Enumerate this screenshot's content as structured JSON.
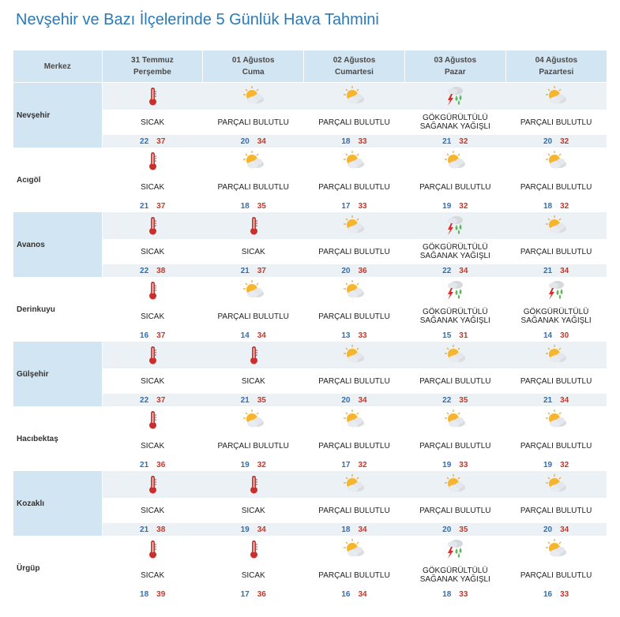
{
  "page_title": "Nevşehir ve Bazı İlçelerinde 5 Günlük Hava Tahmini",
  "header": {
    "merkez": "Merkez",
    "days": [
      {
        "date": "31 Temmuz",
        "weekday": "Perşembe"
      },
      {
        "date": "01 Ağustos",
        "weekday": "Cuma"
      },
      {
        "date": "02 Ağustos",
        "weekday": "Cumartesi"
      },
      {
        "date": "03 Ağustos",
        "weekday": "Pazar"
      },
      {
        "date": "04 Ağustos",
        "weekday": "Pazartesi"
      }
    ]
  },
  "conditions": {
    "hot": {
      "icon": "thermometer-icon",
      "label": "SICAK"
    },
    "partly": {
      "icon": "partly-cloudy-icon",
      "label": "PARÇALI BULUTLU"
    },
    "storm": {
      "icon": "thunderstorm-icon",
      "label_line1": "GÖKGÜRÜLTÜLÜ",
      "label_line2": "SAĞANAK YAĞIŞLI"
    }
  },
  "colors": {
    "low_temp": "#2f6fb5",
    "high_temp": "#c0392b",
    "title": "#2a7ab8",
    "header_bg": "#d2e5f2"
  },
  "rows": [
    {
      "city": "Nevşehir",
      "days": [
        {
          "cond": "hot",
          "label": "SICAK",
          "lo": "22",
          "hi": "37"
        },
        {
          "cond": "partly",
          "label": "PARÇALI BULUTLU",
          "lo": "20",
          "hi": "34"
        },
        {
          "cond": "partly",
          "label": "PARÇALI BULUTLU",
          "lo": "18",
          "hi": "33"
        },
        {
          "cond": "storm",
          "label": "GÖKGÜRÜLTÜLÜ",
          "label2": "SAĞANAK YAĞIŞLI",
          "lo": "21",
          "hi": "32"
        },
        {
          "cond": "partly",
          "label": "PARÇALI BULUTLU",
          "lo": "20",
          "hi": "32"
        }
      ]
    },
    {
      "city": "Acıgöl",
      "days": [
        {
          "cond": "hot",
          "label": "SICAK",
          "lo": "21",
          "hi": "37"
        },
        {
          "cond": "partly",
          "label": "PARÇALI BULUTLU",
          "lo": "18",
          "hi": "35"
        },
        {
          "cond": "partly",
          "label": "PARÇALI BULUTLU",
          "lo": "17",
          "hi": "33"
        },
        {
          "cond": "partly",
          "label": "PARÇALI BULUTLU",
          "lo": "19",
          "hi": "32"
        },
        {
          "cond": "partly",
          "label": "PARÇALI BULUTLU",
          "lo": "18",
          "hi": "32"
        }
      ]
    },
    {
      "city": "Avanos",
      "days": [
        {
          "cond": "hot",
          "label": "SICAK",
          "lo": "22",
          "hi": "38"
        },
        {
          "cond": "hot",
          "label": "SICAK",
          "lo": "21",
          "hi": "37"
        },
        {
          "cond": "partly",
          "label": "PARÇALI BULUTLU",
          "lo": "20",
          "hi": "36"
        },
        {
          "cond": "storm",
          "label": "GÖKGÜRÜLTÜLÜ",
          "label2": "SAĞANAK YAĞIŞLI",
          "lo": "22",
          "hi": "34"
        },
        {
          "cond": "partly",
          "label": "PARÇALI BULUTLU",
          "lo": "21",
          "hi": "34"
        }
      ]
    },
    {
      "city": "Derinkuyu",
      "days": [
        {
          "cond": "hot",
          "label": "SICAK",
          "lo": "16",
          "hi": "37"
        },
        {
          "cond": "partly",
          "label": "PARÇALI BULUTLU",
          "lo": "14",
          "hi": "34"
        },
        {
          "cond": "partly",
          "label": "PARÇALI BULUTLU",
          "lo": "13",
          "hi": "33"
        },
        {
          "cond": "storm",
          "label": "GÖKGÜRÜLTÜLÜ",
          "label2": "SAĞANAK YAĞIŞLI",
          "lo": "15",
          "hi": "31"
        },
        {
          "cond": "storm",
          "label": "GÖKGÜRÜLTÜLÜ",
          "label2": "SAĞANAK YAĞIŞLI",
          "lo": "14",
          "hi": "30"
        }
      ]
    },
    {
      "city": "Gülşehir",
      "days": [
        {
          "cond": "hot",
          "label": "SICAK",
          "lo": "22",
          "hi": "37"
        },
        {
          "cond": "hot",
          "label": "SICAK",
          "lo": "21",
          "hi": "35"
        },
        {
          "cond": "partly",
          "label": "PARÇALI BULUTLU",
          "lo": "20",
          "hi": "34"
        },
        {
          "cond": "partly",
          "label": "PARÇALI BULUTLU",
          "lo": "22",
          "hi": "35"
        },
        {
          "cond": "partly",
          "label": "PARÇALI BULUTLU",
          "lo": "21",
          "hi": "34"
        }
      ]
    },
    {
      "city": "Hacıbektaş",
      "days": [
        {
          "cond": "hot",
          "label": "SICAK",
          "lo": "21",
          "hi": "36"
        },
        {
          "cond": "partly",
          "label": "PARÇALI BULUTLU",
          "lo": "19",
          "hi": "32"
        },
        {
          "cond": "partly",
          "label": "PARÇALI BULUTLU",
          "lo": "17",
          "hi": "32"
        },
        {
          "cond": "partly",
          "label": "PARÇALI BULUTLU",
          "lo": "19",
          "hi": "33"
        },
        {
          "cond": "partly",
          "label": "PARÇALI BULUTLU",
          "lo": "19",
          "hi": "32"
        }
      ]
    },
    {
      "city": "Kozaklı",
      "days": [
        {
          "cond": "hot",
          "label": "SICAK",
          "lo": "21",
          "hi": "38"
        },
        {
          "cond": "hot",
          "label": "SICAK",
          "lo": "19",
          "hi": "34"
        },
        {
          "cond": "partly",
          "label": "PARÇALI BULUTLU",
          "lo": "18",
          "hi": "34"
        },
        {
          "cond": "partly",
          "label": "PARÇALI BULUTLU",
          "lo": "20",
          "hi": "35"
        },
        {
          "cond": "partly",
          "label": "PARÇALI BULUTLU",
          "lo": "20",
          "hi": "34"
        }
      ]
    },
    {
      "city": "Ürgüp",
      "days": [
        {
          "cond": "hot",
          "label": "SICAK",
          "lo": "18",
          "hi": "39"
        },
        {
          "cond": "hot",
          "label": "SICAK",
          "lo": "17",
          "hi": "36"
        },
        {
          "cond": "partly",
          "label": "PARÇALI BULUTLU",
          "lo": "16",
          "hi": "34"
        },
        {
          "cond": "storm",
          "label": "GÖKGÜRÜLTÜLÜ",
          "label2": "SAĞANAK YAĞIŞLI",
          "lo": "18",
          "hi": "33"
        },
        {
          "cond": "partly",
          "label": "PARÇALI BULUTLU",
          "lo": "16",
          "hi": "33"
        }
      ]
    }
  ]
}
